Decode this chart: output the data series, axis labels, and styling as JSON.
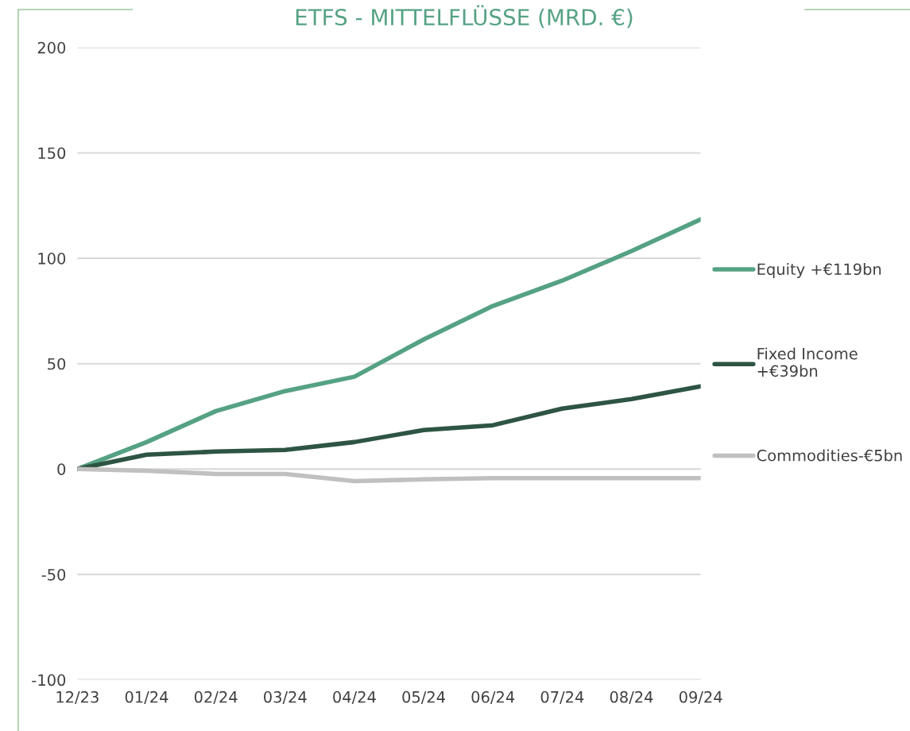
{
  "chart_data": {
    "type": "line",
    "title": "ETFS - MITTELFLÜSSE (MRD. €)",
    "categories": [
      "12/23",
      "01/24",
      "02/24",
      "03/24",
      "04/24",
      "05/24",
      "06/24",
      "07/24",
      "08/24",
      "09/24"
    ],
    "series": [
      {
        "name": "Equity +€119bn",
        "color": "#55a283",
        "values": [
          0,
          12.8,
          27.5,
          37,
          43.8,
          61.5,
          77.4,
          89.4,
          103.4,
          118.5
        ]
      },
      {
        "name": "Fixed Income\n+€39bn",
        "color": "#2e5444",
        "values": [
          0,
          6.8,
          8.3,
          9.1,
          12.8,
          18.5,
          20.8,
          28.7,
          33.2,
          39.2
        ]
      },
      {
        "name": "Commodities-€5bn",
        "color": "#c0c0c0",
        "values": [
          0,
          -0.8,
          -2.3,
          -2.3,
          -5.7,
          -4.9,
          -4.3,
          -4.3,
          -4.3,
          -4.3
        ]
      }
    ],
    "ylim": [
      -100,
      200
    ],
    "yticks": [
      -100,
      -50,
      0,
      50,
      100,
      150,
      200
    ],
    "grid": "y",
    "legend": "right",
    "marker": "none",
    "line_style": "solid"
  }
}
